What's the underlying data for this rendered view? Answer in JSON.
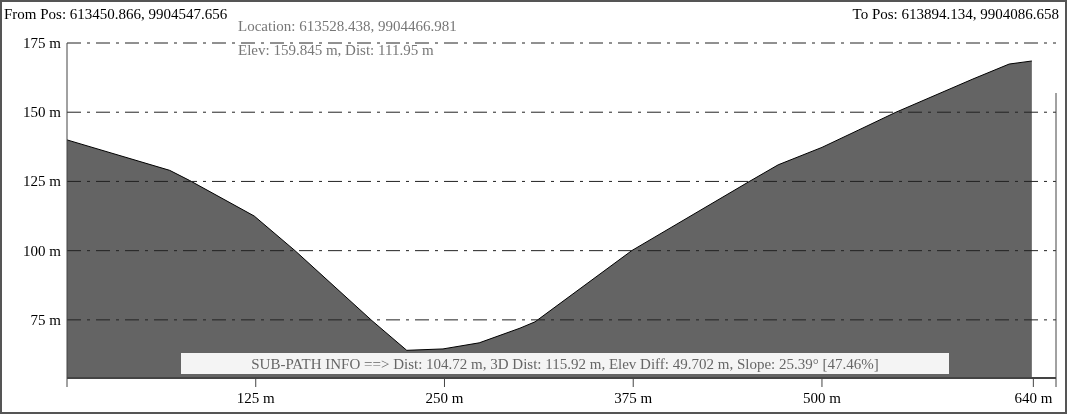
{
  "chart_data": {
    "type": "area",
    "x": [
      0,
      68,
      81,
      124,
      151,
      202,
      225,
      249,
      273,
      300,
      310,
      374,
      451,
      471,
      500,
      524,
      549,
      600,
      624,
      639
    ],
    "series": [
      {
        "color": "#646464",
        "values": [
          140,
          129,
          125.4,
          112.5,
          100,
          74.7,
          64,
          64.5,
          66.7,
          72,
          74.3,
          100,
          124.7,
          131,
          137.3,
          143.5,
          150,
          162,
          167.4,
          168.5
        ]
      }
    ],
    "xlim": [
      0,
      655
    ],
    "ylim": [
      54,
      175
    ],
    "xticks": [
      {
        "value": 125,
        "label": "125 m"
      },
      {
        "value": 250,
        "label": "250 m"
      },
      {
        "value": 375,
        "label": "375 m"
      },
      {
        "value": 500,
        "label": "500 m"
      },
      {
        "value": 640,
        "label": "640 m"
      }
    ],
    "yticks": [
      {
        "value": 75,
        "label": "75 m"
      },
      {
        "value": 100,
        "label": "100 m"
      },
      {
        "value": 125,
        "label": "125 m"
      },
      {
        "value": 150,
        "label": "150 m"
      },
      {
        "value": 175,
        "label": "175 m"
      }
    ],
    "grid": "y",
    "line_style": "dashed",
    "annotations": [
      "From Pos: 613450.866, 9904547.656",
      "To Pos: 613894.134, 9904086.658",
      "Location: 613528.438, 9904466.981",
      "Elev: 159.845 m, Dist: 111.95 m",
      "SUB-PATH INFO ==> Dist: 104.72 m, 3D Dist: 115.92 m, Elev Diff: 49.702 m, Slope: 25.39° [47.46%]"
    ]
  }
}
